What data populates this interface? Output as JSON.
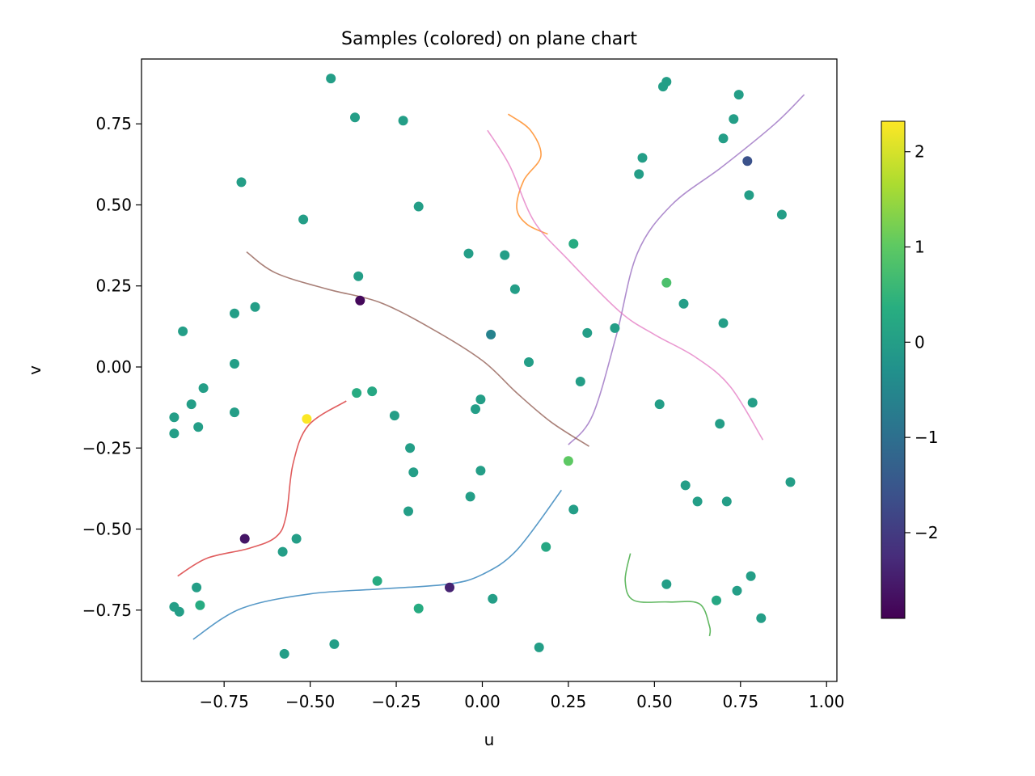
{
  "chart_data": {
    "type": "scatter",
    "title": "Samples (colored) on plane chart",
    "xlabel": "u",
    "ylabel": "v",
    "xlim": [
      -0.99,
      1.03
    ],
    "ylim": [
      -0.97,
      0.95
    ],
    "xticks": [
      -0.75,
      -0.5,
      -0.25,
      0.0,
      0.25,
      0.5,
      0.75,
      1.0
    ],
    "xtick_labels": [
      "−0.75",
      "−0.50",
      "−0.25",
      "0.00",
      "0.25",
      "0.50",
      "0.75",
      "1.00"
    ],
    "yticks": [
      0.75,
      0.5,
      0.25,
      0.0,
      -0.25,
      -0.5,
      -0.75
    ],
    "ytick_labels": [
      "0.75",
      "0.50",
      "0.25",
      "0.00",
      "−0.25",
      "−0.50",
      "−0.75"
    ],
    "grid": false,
    "colorbar": {
      "colormap": "viridis",
      "range": [
        -2.9,
        2.32
      ],
      "ticks": [
        2,
        1,
        0,
        -1,
        -2
      ],
      "tick_labels": [
        "2",
        "1",
        "0",
        "−1",
        "−2"
      ],
      "stops": [
        "#440154",
        "#472d7b",
        "#3b528b",
        "#2c728e",
        "#21918c",
        "#28ae80",
        "#5ec962",
        "#addc30",
        "#fde725"
      ]
    },
    "points": [
      [
        -0.44,
        0.89,
        0.0
      ],
      [
        -0.37,
        0.77,
        0.0
      ],
      [
        -0.23,
        0.76,
        0.0
      ],
      [
        -0.7,
        0.57,
        0.0
      ],
      [
        -0.52,
        0.455,
        0.0
      ],
      [
        -0.185,
        0.495,
        0.0
      ],
      [
        -0.36,
        0.28,
        0.0
      ],
      [
        -0.355,
        0.205,
        -2.8
      ],
      [
        -0.72,
        0.165,
        0.0
      ],
      [
        -0.66,
        0.185,
        0.0
      ],
      [
        -0.87,
        0.11,
        0.0
      ],
      [
        -0.72,
        0.01,
        0.0
      ],
      [
        -0.81,
        -0.065,
        0.0
      ],
      [
        -0.845,
        -0.115,
        0.0
      ],
      [
        -0.895,
        -0.155,
        0.0
      ],
      [
        -0.895,
        -0.205,
        0.0
      ],
      [
        -0.825,
        -0.185,
        0.0
      ],
      [
        -0.72,
        -0.14,
        0.0
      ],
      [
        -0.51,
        -0.16,
        2.3
      ],
      [
        -0.365,
        -0.08,
        0.3
      ],
      [
        -0.32,
        -0.075,
        0.2
      ],
      [
        -0.255,
        -0.15,
        0.0
      ],
      [
        -0.21,
        -0.25,
        0.0
      ],
      [
        -0.2,
        -0.325,
        0.0
      ],
      [
        -0.215,
        -0.445,
        0.0
      ],
      [
        -0.69,
        -0.53,
        -2.6
      ],
      [
        -0.54,
        -0.53,
        0.0
      ],
      [
        -0.58,
        -0.57,
        0.0
      ],
      [
        -0.83,
        -0.68,
        0.0
      ],
      [
        -0.895,
        -0.74,
        0.0
      ],
      [
        -0.88,
        -0.755,
        0.0
      ],
      [
        -0.82,
        -0.735,
        0.3
      ],
      [
        -0.305,
        -0.66,
        0.3
      ],
      [
        -0.185,
        -0.745,
        0.3
      ],
      [
        -0.095,
        -0.68,
        -2.4
      ],
      [
        -0.43,
        -0.855,
        0.0
      ],
      [
        -0.575,
        -0.885,
        0.0
      ],
      [
        -0.04,
        0.35,
        0.0
      ],
      [
        0.065,
        0.345,
        0.0
      ],
      [
        0.265,
        0.38,
        0.3
      ],
      [
        0.095,
        0.24,
        0.0
      ],
      [
        0.025,
        0.1,
        -0.6
      ],
      [
        0.135,
        0.015,
        0.0
      ],
      [
        0.305,
        0.105,
        0.0
      ],
      [
        0.385,
        0.12,
        0.0
      ],
      [
        0.285,
        -0.045,
        0.0
      ],
      [
        -0.005,
        -0.1,
        0.0
      ],
      [
        -0.02,
        -0.13,
        0.0
      ],
      [
        0.25,
        -0.29,
        1.0
      ],
      [
        -0.005,
        -0.32,
        0.0
      ],
      [
        -0.035,
        -0.4,
        0.0
      ],
      [
        0.265,
        -0.44,
        0.0
      ],
      [
        0.185,
        -0.555,
        0.2
      ],
      [
        0.03,
        -0.715,
        0.0
      ],
      [
        0.165,
        -0.865,
        0.0
      ],
      [
        0.455,
        0.595,
        0.0
      ],
      [
        0.465,
        0.645,
        0.0
      ],
      [
        0.525,
        0.865,
        0.0
      ],
      [
        0.535,
        0.88,
        0.0
      ],
      [
        0.745,
        0.84,
        0.0
      ],
      [
        0.73,
        0.765,
        0.0
      ],
      [
        0.7,
        0.705,
        0.0
      ],
      [
        0.77,
        0.635,
        -1.6
      ],
      [
        0.775,
        0.53,
        0.0
      ],
      [
        0.87,
        0.47,
        0.0
      ],
      [
        0.535,
        0.26,
        0.8
      ],
      [
        0.585,
        0.195,
        0.0
      ],
      [
        0.7,
        0.135,
        0.0
      ],
      [
        0.515,
        -0.115,
        0.0
      ],
      [
        0.785,
        -0.11,
        0.0
      ],
      [
        0.69,
        -0.175,
        0.0
      ],
      [
        0.59,
        -0.365,
        0.0
      ],
      [
        0.625,
        -0.415,
        0.0
      ],
      [
        0.71,
        -0.415,
        0.0
      ],
      [
        0.895,
        -0.355,
        0.0
      ],
      [
        0.535,
        -0.67,
        0.0
      ],
      [
        0.68,
        -0.72,
        0.2
      ],
      [
        0.74,
        -0.69,
        0.0
      ],
      [
        0.78,
        -0.645,
        0.0
      ],
      [
        0.81,
        -0.775,
        0.0
      ]
    ],
    "curves": [
      {
        "name": "blue",
        "color": "#1f77b4",
        "pts": [
          [
            -0.84,
            -0.84
          ],
          [
            -0.7,
            -0.745
          ],
          [
            -0.5,
            -0.7
          ],
          [
            -0.3,
            -0.685
          ],
          [
            -0.1,
            -0.67
          ],
          [
            0.0,
            -0.64
          ],
          [
            0.1,
            -0.565
          ],
          [
            0.23,
            -0.38
          ]
        ]
      },
      {
        "name": "orange",
        "color": "#ff7f0e",
        "pts": [
          [
            0.075,
            0.78
          ],
          [
            0.14,
            0.73
          ],
          [
            0.17,
            0.65
          ],
          [
            0.12,
            0.575
          ],
          [
            0.1,
            0.49
          ],
          [
            0.13,
            0.44
          ],
          [
            0.19,
            0.41
          ]
        ]
      },
      {
        "name": "green",
        "color": "#2ca02c",
        "pts": [
          [
            0.43,
            -0.575
          ],
          [
            0.415,
            -0.66
          ],
          [
            0.44,
            -0.72
          ],
          [
            0.54,
            -0.725
          ],
          [
            0.63,
            -0.73
          ],
          [
            0.66,
            -0.8
          ],
          [
            0.66,
            -0.83
          ]
        ]
      },
      {
        "name": "red",
        "color": "#d62728",
        "pts": [
          [
            -0.885,
            -0.645
          ],
          [
            -0.8,
            -0.59
          ],
          [
            -0.68,
            -0.56
          ],
          [
            -0.6,
            -0.525
          ],
          [
            -0.57,
            -0.46
          ],
          [
            -0.55,
            -0.3
          ],
          [
            -0.505,
            -0.18
          ],
          [
            -0.395,
            -0.105
          ]
        ]
      },
      {
        "name": "purple",
        "color": "#9467bd",
        "pts": [
          [
            0.25,
            -0.24
          ],
          [
            0.32,
            -0.15
          ],
          [
            0.39,
            0.1
          ],
          [
            0.45,
            0.35
          ],
          [
            0.55,
            0.5
          ],
          [
            0.7,
            0.62
          ],
          [
            0.85,
            0.75
          ],
          [
            0.935,
            0.84
          ]
        ]
      },
      {
        "name": "brown",
        "color": "#8c564b",
        "pts": [
          [
            -0.685,
            0.355
          ],
          [
            -0.6,
            0.29
          ],
          [
            -0.45,
            0.24
          ],
          [
            -0.3,
            0.2
          ],
          [
            -0.15,
            0.12
          ],
          [
            0.0,
            0.02
          ],
          [
            0.1,
            -0.08
          ],
          [
            0.2,
            -0.17
          ],
          [
            0.31,
            -0.245
          ]
        ]
      },
      {
        "name": "pink",
        "color": "#e377c2",
        "pts": [
          [
            0.015,
            0.73
          ],
          [
            0.08,
            0.62
          ],
          [
            0.15,
            0.45
          ],
          [
            0.25,
            0.33
          ],
          [
            0.4,
            0.17
          ],
          [
            0.5,
            0.1
          ],
          [
            0.62,
            0.03
          ],
          [
            0.72,
            -0.06
          ],
          [
            0.815,
            -0.225
          ]
        ]
      }
    ]
  }
}
